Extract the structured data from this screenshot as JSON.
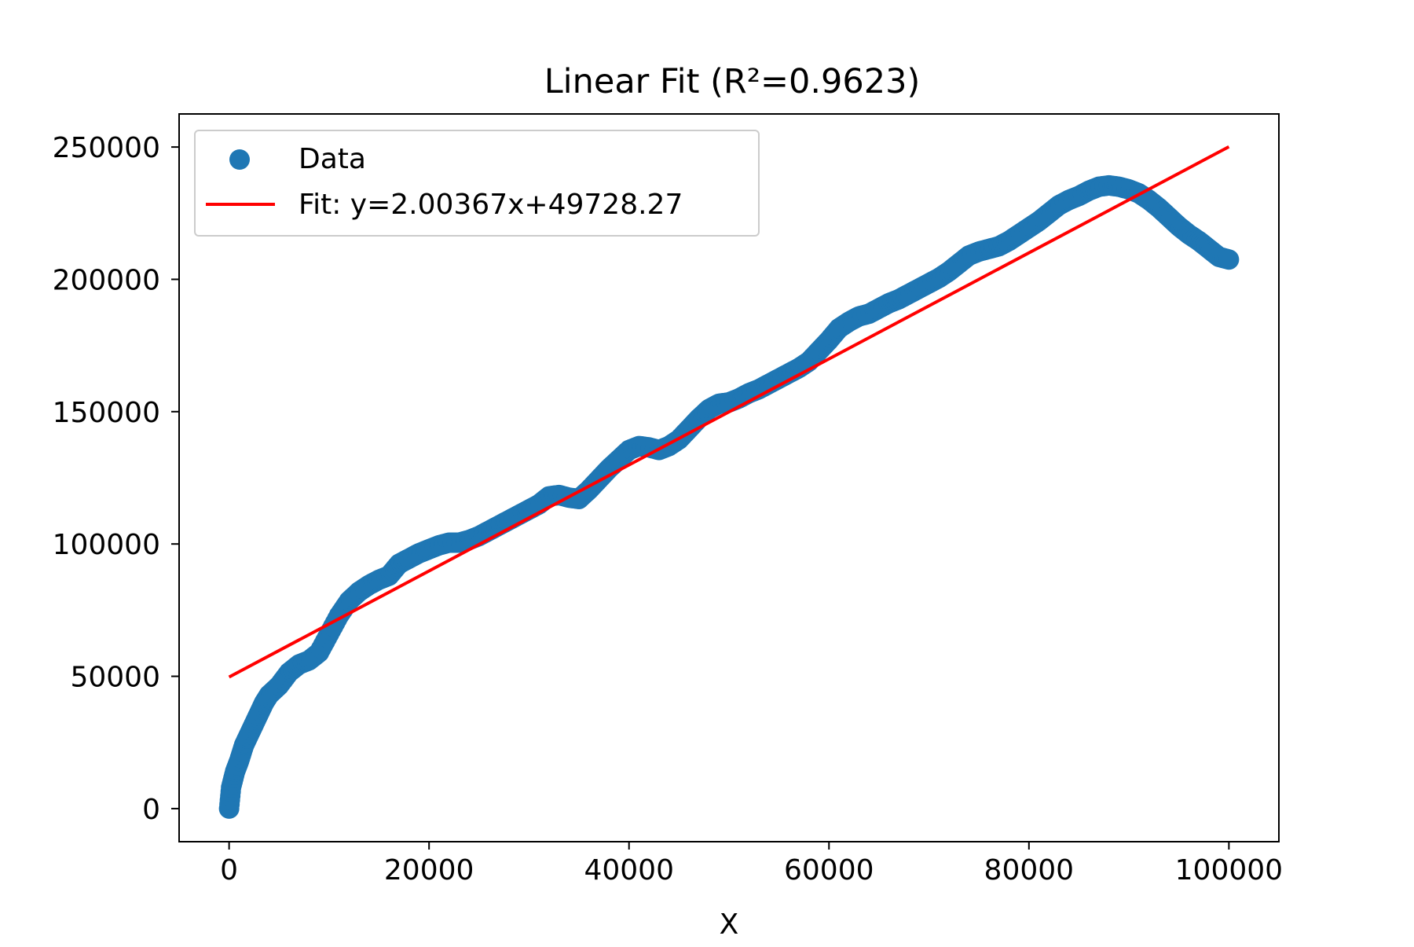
{
  "chart_data": {
    "type": "scatter",
    "title": "Linear Fit (R²=0.9623)",
    "xlabel": "X",
    "ylabel": "",
    "xlim": [
      -5000,
      105000
    ],
    "ylim": [
      -12500,
      262500
    ],
    "x_ticks": [
      {
        "value": 0,
        "label": "0"
      },
      {
        "value": 20000,
        "label": "20000"
      },
      {
        "value": 40000,
        "label": "40000"
      },
      {
        "value": 60000,
        "label": "60000"
      },
      {
        "value": 80000,
        "label": "80000"
      },
      {
        "value": 100000,
        "label": "100000"
      }
    ],
    "y_ticks": [
      {
        "value": 0,
        "label": "0"
      },
      {
        "value": 50000,
        "label": "50000"
      },
      {
        "value": 100000,
        "label": "100000"
      },
      {
        "value": 150000,
        "label": "150000"
      },
      {
        "value": 200000,
        "label": "200000"
      },
      {
        "value": 250000,
        "label": "250000"
      }
    ],
    "grid": false,
    "legend_position": "top-left",
    "series": [
      {
        "name": "Data",
        "kind": "scatter",
        "color": "#1f77b4",
        "points": [
          [
            0,
            0
          ],
          [
            200,
            8000
          ],
          [
            600,
            14000
          ],
          [
            1000,
            18000
          ],
          [
            1500,
            24000
          ],
          [
            2000,
            28000
          ],
          [
            2500,
            32000
          ],
          [
            3000,
            36000
          ],
          [
            3500,
            40000
          ],
          [
            4000,
            43000
          ],
          [
            5000,
            46500
          ],
          [
            6000,
            51500
          ],
          [
            7000,
            54500
          ],
          [
            8000,
            56000
          ],
          [
            9000,
            59000
          ],
          [
            10000,
            66000
          ],
          [
            11000,
            73000
          ],
          [
            12000,
            78500
          ],
          [
            13000,
            82000
          ],
          [
            14000,
            84500
          ],
          [
            15000,
            86500
          ],
          [
            16000,
            88000
          ],
          [
            17000,
            92500
          ],
          [
            18000,
            94500
          ],
          [
            19000,
            96500
          ],
          [
            20000,
            98000
          ],
          [
            21000,
            99500
          ],
          [
            22000,
            100500
          ],
          [
            23000,
            100500
          ],
          [
            24000,
            101500
          ],
          [
            25000,
            103000
          ],
          [
            26000,
            105000
          ],
          [
            27000,
            107000
          ],
          [
            28000,
            109000
          ],
          [
            29000,
            111000
          ],
          [
            30000,
            113000
          ],
          [
            31000,
            115000
          ],
          [
            32000,
            118000
          ],
          [
            33000,
            118500
          ],
          [
            34000,
            117500
          ],
          [
            35000,
            117000
          ],
          [
            36000,
            120500
          ],
          [
            37000,
            124500
          ],
          [
            38000,
            128500
          ],
          [
            39000,
            132000
          ],
          [
            40000,
            135500
          ],
          [
            41000,
            137000
          ],
          [
            42000,
            136500
          ],
          [
            43000,
            135500
          ],
          [
            44000,
            137000
          ],
          [
            45000,
            139500
          ],
          [
            46000,
            143500
          ],
          [
            47000,
            147500
          ],
          [
            48000,
            151000
          ],
          [
            49000,
            153000
          ],
          [
            50000,
            153500
          ],
          [
            51000,
            155000
          ],
          [
            52000,
            157000
          ],
          [
            53000,
            158500
          ],
          [
            54000,
            160500
          ],
          [
            55000,
            162500
          ],
          [
            56000,
            164500
          ],
          [
            57000,
            166500
          ],
          [
            58000,
            169000
          ],
          [
            59000,
            173000
          ],
          [
            60000,
            177000
          ],
          [
            61000,
            181500
          ],
          [
            62000,
            184000
          ],
          [
            63000,
            186000
          ],
          [
            64000,
            187000
          ],
          [
            65000,
            189000
          ],
          [
            66000,
            191000
          ],
          [
            67000,
            192500
          ],
          [
            68000,
            194500
          ],
          [
            69000,
            196500
          ],
          [
            70000,
            198500
          ],
          [
            71000,
            200500
          ],
          [
            72000,
            203000
          ],
          [
            73000,
            206000
          ],
          [
            74000,
            209000
          ],
          [
            75000,
            210500
          ],
          [
            76000,
            211500
          ],
          [
            77000,
            212500
          ],
          [
            78000,
            214500
          ],
          [
            79000,
            217000
          ],
          [
            80000,
            219500
          ],
          [
            81000,
            222000
          ],
          [
            82000,
            225000
          ],
          [
            83000,
            228000
          ],
          [
            84000,
            230000
          ],
          [
            85000,
            231500
          ],
          [
            86000,
            233500
          ],
          [
            87000,
            235000
          ],
          [
            88000,
            235500
          ],
          [
            89000,
            235000
          ],
          [
            90000,
            234000
          ],
          [
            91000,
            232500
          ],
          [
            92000,
            230000
          ],
          [
            93000,
            227000
          ],
          [
            94000,
            223500
          ],
          [
            95000,
            220000
          ],
          [
            96000,
            217000
          ],
          [
            97000,
            214500
          ],
          [
            98000,
            211500
          ],
          [
            99000,
            208500
          ],
          [
            100000,
            207500
          ]
        ]
      },
      {
        "name": "Fit: y=2.00367x+49728.27",
        "kind": "line",
        "color": "#ff0000",
        "x": [
          0,
          100000
        ],
        "y": [
          49728.27,
          250095.27
        ]
      }
    ]
  }
}
